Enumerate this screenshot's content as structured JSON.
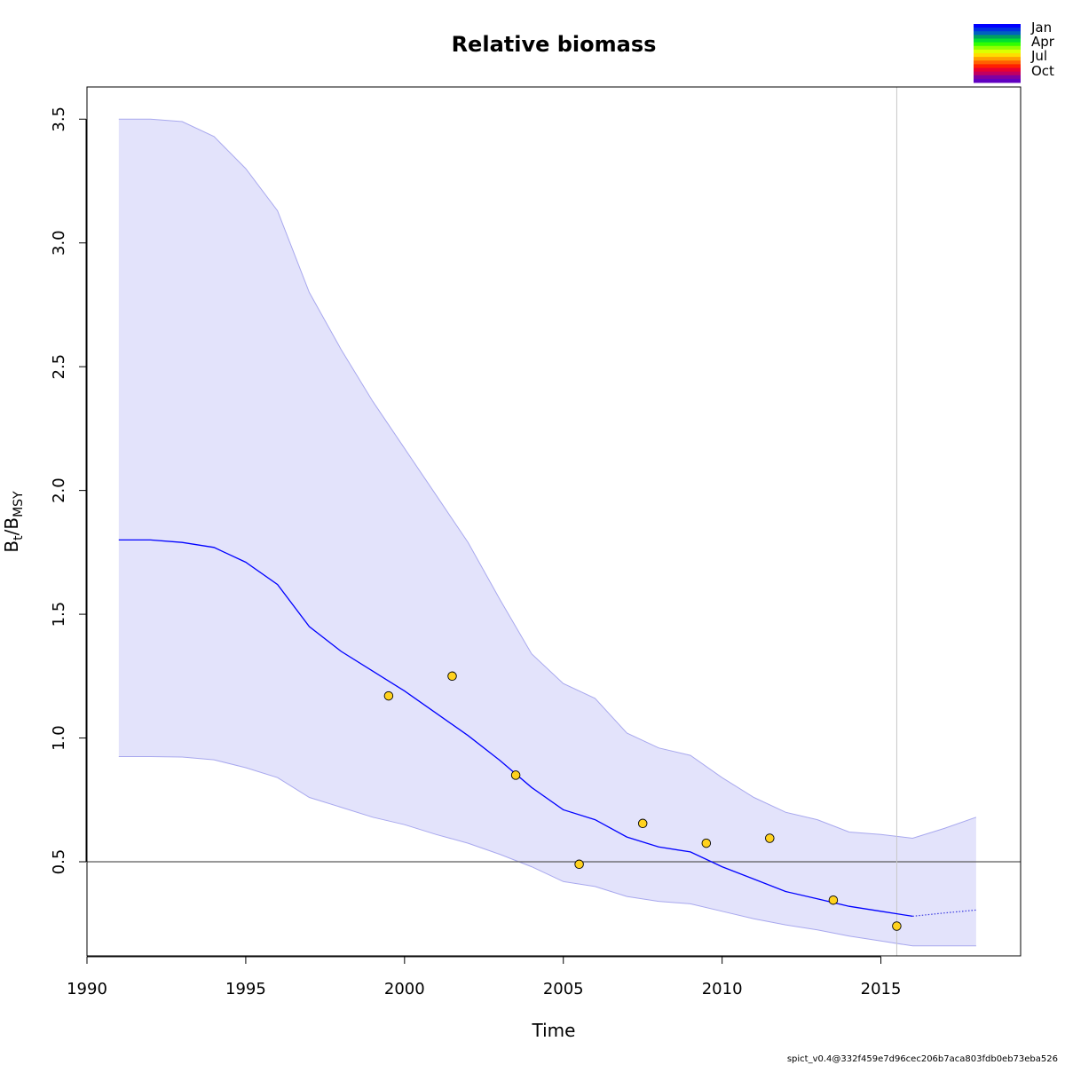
{
  "chart_data": {
    "type": "line",
    "title": "Relative biomass",
    "xlabel": "Time",
    "ylabel_main": "B",
    "ylabel_sub1": "t",
    "ylabel_sep": "/B",
    "ylabel_sub2": "MSY",
    "xlim": [
      1990,
      2019.4
    ],
    "ylim": [
      0.12,
      3.63
    ],
    "x_ticks": [
      1990,
      1995,
      2000,
      2005,
      2010,
      2015
    ],
    "x_tick_labels": [
      "1990",
      "1995",
      "2000",
      "2005",
      "2010",
      "2015"
    ],
    "y_ticks": [
      0.5,
      1.0,
      1.5,
      2.0,
      2.5,
      3.0,
      3.5
    ],
    "y_tick_labels": [
      "0.5",
      "1.0",
      "1.5",
      "2.0",
      "2.5",
      "3.0",
      "3.5"
    ],
    "grid": false,
    "reference_line_y": 0.5,
    "vertical_line_x": 2015.5,
    "colors": {
      "band": "#e3e3fb",
      "band_edge": "#a8a8ee",
      "line": "#0000ff",
      "forecast_line": "#3a3ae0",
      "points_fill": "#ffd21e",
      "reference": "#5a5a5a",
      "vline": "#c8c8c8"
    },
    "estimate": {
      "x": [
        1991,
        1992,
        1993,
        1994,
        1995,
        1996,
        1997,
        1998,
        1999,
        2000,
        2001,
        2002,
        2003,
        2004,
        2005,
        2006,
        2007,
        2008,
        2009,
        2010,
        2011,
        2012,
        2013,
        2014,
        2015,
        2016
      ],
      "y": [
        1.8,
        1.8,
        1.79,
        1.77,
        1.71,
        1.62,
        1.45,
        1.35,
        1.27,
        1.19,
        1.1,
        1.01,
        0.91,
        0.8,
        0.71,
        0.67,
        0.6,
        0.56,
        0.54,
        0.48,
        0.43,
        0.38,
        0.35,
        0.32,
        0.3,
        0.28
      ]
    },
    "forecast": {
      "x": [
        2016,
        2017,
        2018
      ],
      "y": [
        0.28,
        0.293,
        0.305
      ]
    },
    "ci_upper": {
      "x": [
        1991,
        1992,
        1993,
        1994,
        1995,
        1996,
        1997,
        1998,
        1999,
        2000,
        2001,
        2002,
        2003,
        2004,
        2005,
        2006,
        2007,
        2008,
        2009,
        2010,
        2011,
        2012,
        2013,
        2014,
        2015,
        2016,
        2017,
        2018
      ],
      "y": [
        3.5,
        3.5,
        3.49,
        3.43,
        3.3,
        3.13,
        2.8,
        2.57,
        2.36,
        2.17,
        1.98,
        1.79,
        1.56,
        1.34,
        1.22,
        1.16,
        1.02,
        0.96,
        0.93,
        0.84,
        0.76,
        0.7,
        0.67,
        0.62,
        0.61,
        0.595,
        0.635,
        0.68
      ]
    },
    "ci_lower": {
      "x": [
        1991,
        1992,
        1993,
        1994,
        1995,
        1996,
        1997,
        1998,
        1999,
        2000,
        2001,
        2002,
        2003,
        2004,
        2005,
        2006,
        2007,
        2008,
        2009,
        2010,
        2011,
        2012,
        2013,
        2014,
        2015,
        2016,
        2017,
        2018
      ],
      "y": [
        0.925,
        0.925,
        0.923,
        0.912,
        0.88,
        0.84,
        0.76,
        0.72,
        0.68,
        0.65,
        0.61,
        0.575,
        0.53,
        0.48,
        0.42,
        0.4,
        0.36,
        0.34,
        0.33,
        0.3,
        0.27,
        0.245,
        0.225,
        0.2,
        0.18,
        0.16,
        0.16,
        0.16
      ]
    },
    "index_points": {
      "x": [
        1999.5,
        2001.5,
        2003.5,
        2005.5,
        2007.5,
        2009.5,
        2011.5,
        2013.5,
        2015.5
      ],
      "y": [
        1.17,
        1.25,
        0.85,
        0.49,
        0.655,
        0.575,
        0.595,
        0.345,
        0.24
      ]
    },
    "season_legend": {
      "labels": [
        "Jan",
        "Apr",
        "Jul",
        "Oct"
      ],
      "colors": [
        "#0000ff",
        "#0030e0",
        "#0060c0",
        "#00a060",
        "#00e030",
        "#30ff00",
        "#90ff00",
        "#ddff00",
        "#ffdd00",
        "#ffa000",
        "#ff6000",
        "#ff2000",
        "#e80030",
        "#c00060",
        "#8000a0",
        "#6000c0"
      ]
    }
  },
  "footer_text": "spict_v0.4@332f459e7d96cec206b7aca803fdb0eb73eba526"
}
